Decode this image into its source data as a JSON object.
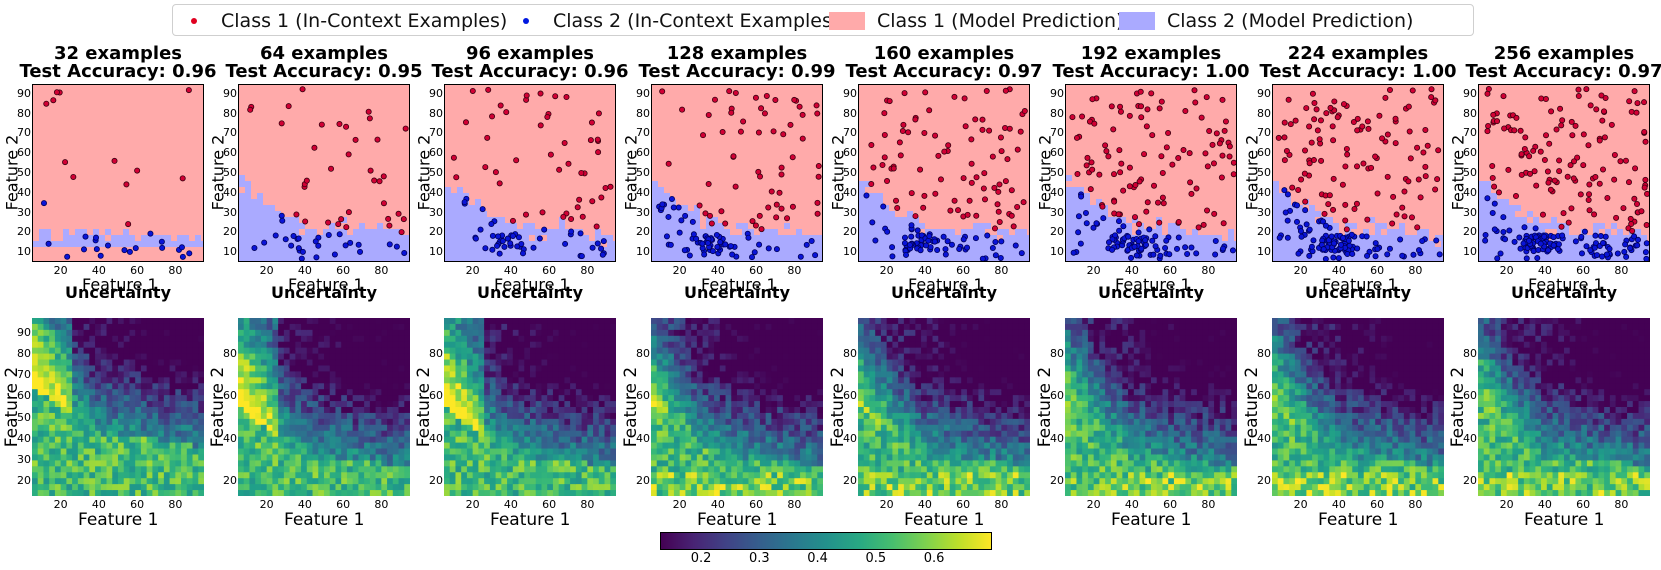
{
  "legend": {
    "class1_examples": "Class 1 (In-Context Examples)",
    "class2_examples": "Class 2 (In-Context Examples)",
    "class1_prediction": "Class 1 (Model Prediction)",
    "class2_prediction": "Class 2 (Model Prediction)"
  },
  "colors": {
    "class1_point": "#d10034",
    "class2_point": "#0a14d8",
    "class1_region": "#ffaaaa",
    "class2_region": "#aaaaff"
  },
  "chart_data": {
    "type": "scatter",
    "panels": [
      {
        "title": "32 examples",
        "accuracy": "Test Accuracy: 0.96",
        "n": 32
      },
      {
        "title": "64 examples",
        "accuracy": "Test Accuracy: 0.95",
        "n": 64
      },
      {
        "title": "96 examples",
        "accuracy": "Test Accuracy: 0.96",
        "n": 96
      },
      {
        "title": "128 examples",
        "accuracy": "Test Accuracy: 0.99",
        "n": 128
      },
      {
        "title": "160 examples",
        "accuracy": "Test Accuracy: 0.97",
        "n": 160
      },
      {
        "title": "192 examples",
        "accuracy": "Test Accuracy: 1.00",
        "n": 192
      },
      {
        "title": "224 examples",
        "accuracy": "Test Accuracy: 1.00",
        "n": 224
      },
      {
        "title": "256 examples",
        "accuracy": "Test Accuracy: 0.97",
        "n": 256
      }
    ],
    "xlabel": "Feature 1",
    "ylabel": "Feature 2",
    "xlim": [
      5,
      95
    ],
    "ylim_top": [
      5,
      95
    ],
    "ylim_bottom": [
      13,
      97
    ],
    "xticks": [
      "20",
      "40",
      "60",
      "80"
    ],
    "yticks_top": [
      "10",
      "20",
      "30",
      "40",
      "50",
      "60",
      "70",
      "80",
      "90"
    ],
    "yticks_bottom_first": [
      "20",
      "30",
      "40",
      "50",
      "60",
      "70",
      "80",
      "90"
    ],
    "yticks_bottom": [
      "20",
      "40",
      "60",
      "80"
    ],
    "uncertainty_title": "Uncertainty",
    "colorbar": {
      "ticks": [
        "0.2",
        "0.3",
        "0.4",
        "0.5",
        "0.6"
      ],
      "range": [
        0.13,
        0.7
      ]
    }
  }
}
